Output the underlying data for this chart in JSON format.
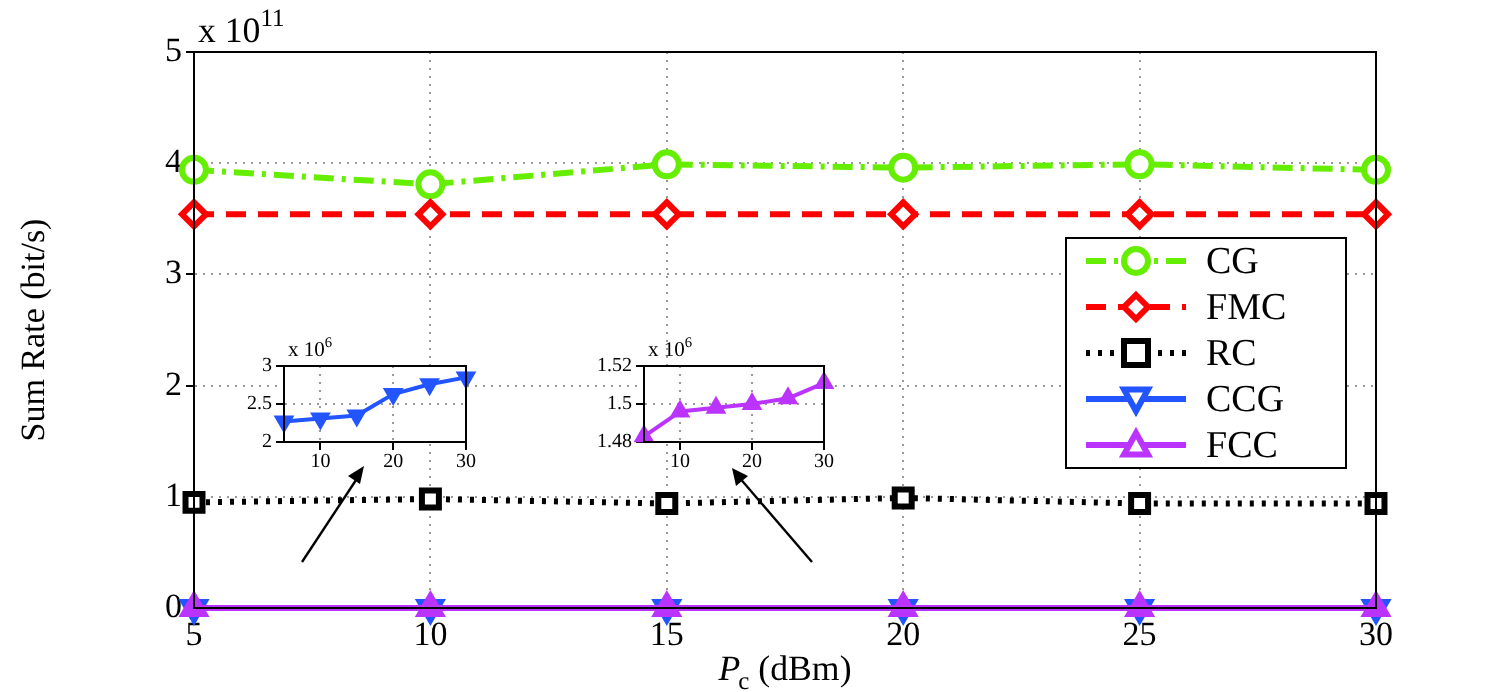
{
  "chart_data": [
    {
      "type": "line",
      "xlabel": "P$_{c}$ (dBm)",
      "ylabel": "Sum Rate (bit/s)",
      "annotations": [
        "x 10$^{11}$"
      ],
      "x": [
        5,
        10,
        15,
        20,
        25,
        30
      ],
      "series": [
        {
          "name": "CG",
          "color": "#66ee00",
          "marker": "circle",
          "line_style": "dashdot",
          "values": [
            3.94,
            3.81,
            3.99,
            3.96,
            3.99,
            3.94
          ]
        },
        {
          "name": "FMC",
          "color": "#ff0000",
          "marker": "diamond",
          "line_style": "dashed",
          "values": [
            3.54,
            3.54,
            3.54,
            3.54,
            3.54,
            3.54
          ]
        },
        {
          "name": "RC",
          "color": "#000000",
          "marker": "square",
          "line_style": "dotted",
          "values": [
            0.95,
            0.98,
            0.94,
            0.99,
            0.94,
            0.94
          ]
        },
        {
          "name": "CCG",
          "color": "#2255ff",
          "marker": "triangle_down",
          "line_style": "solid",
          "values": [
            0,
            0,
            0,
            0,
            0,
            0
          ]
        },
        {
          "name": "FCC",
          "color": "#bb33ff",
          "marker": "triangle",
          "line_style": "solid",
          "values": [
            0,
            0,
            0,
            0,
            0,
            0
          ]
        }
      ],
      "xlim": [
        5,
        30
      ],
      "xticks": [
        5,
        10,
        15,
        20,
        25,
        30
      ],
      "ylim": [
        0,
        5
      ],
      "yticks": [
        0,
        1,
        2,
        3,
        4,
        5
      ],
      "grid": true,
      "legend": "bottom right"
    },
    {
      "type": "line",
      "annotations": [
        "x 10$^{6}$"
      ],
      "x": [
        5,
        10,
        15,
        20,
        25,
        30
      ],
      "series": [
        {
          "color": "#2255ff",
          "marker": "triangle_down",
          "line_style": "solid",
          "values": [
            2.27,
            2.31,
            2.35,
            2.63,
            2.76,
            2.85
          ]
        }
      ],
      "xlim": [
        5,
        30
      ],
      "xticks": [
        10,
        20,
        30
      ],
      "ylim": [
        2,
        3
      ],
      "yticks": [
        2,
        2.5,
        3
      ],
      "grid": true
    },
    {
      "type": "line",
      "annotations": [
        "x 10$^{6}$"
      ],
      "x": [
        5,
        10,
        15,
        20,
        25,
        30
      ],
      "series": [
        {
          "color": "#bb33ff",
          "marker": "triangle",
          "line_style": "solid",
          "values": [
            1.483,
            1.496,
            1.498,
            1.5,
            1.503,
            1.511
          ]
        }
      ],
      "xlim": [
        5,
        30
      ],
      "xticks": [
        10,
        20,
        30
      ],
      "ylim": [
        1.48,
        1.52
      ],
      "yticks": [
        1.48,
        1.5,
        1.52
      ],
      "grid": true
    }
  ]
}
